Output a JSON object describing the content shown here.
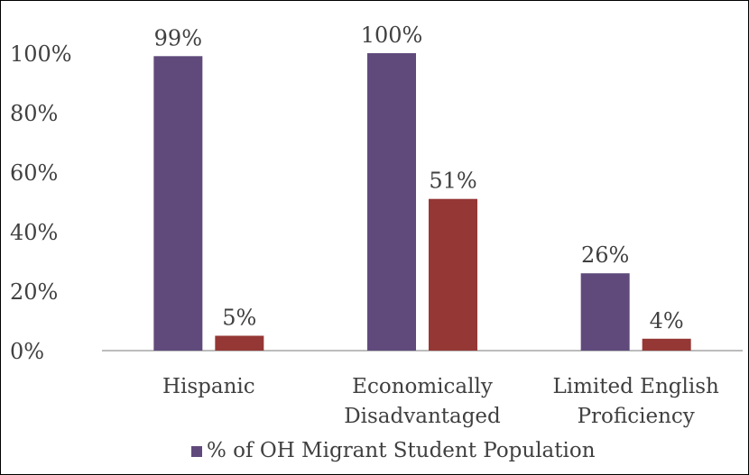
{
  "chart_data": {
    "type": "bar",
    "categories": [
      [
        "Hispanic"
      ],
      [
        "Economically",
        "Disadvantaged"
      ],
      [
        "Limited English",
        "Proficiency"
      ]
    ],
    "series": [
      {
        "name": "% of OH Migrant Student Population",
        "values": [
          99,
          100,
          26
        ],
        "labels": [
          "99%",
          "100%",
          "26%"
        ],
        "color": "#604a7b"
      },
      {
        "values": [
          5,
          51,
          4
        ],
        "labels": [
          "5%",
          "51%",
          "4%"
        ],
        "color": "#953735"
      }
    ],
    "ylim": [
      0,
      100
    ],
    "yticks": [
      "0%",
      "20%",
      "40%",
      "60%",
      "80%",
      "100%"
    ],
    "grid": false,
    "legend": "bottom",
    "title": "",
    "xlabel": "",
    "ylabel": ""
  }
}
